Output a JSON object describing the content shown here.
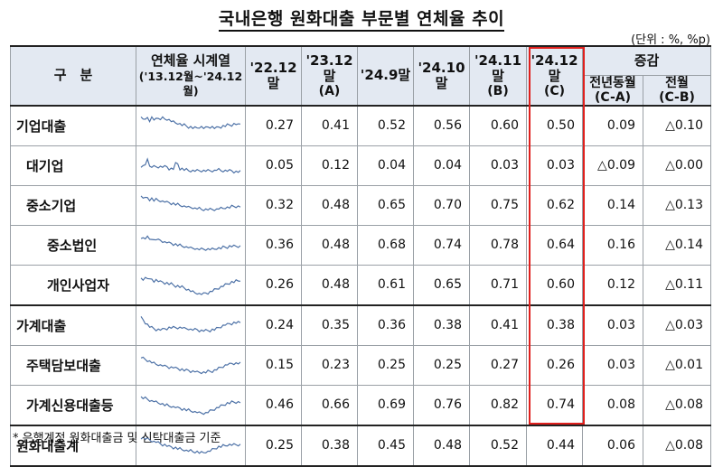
{
  "title": "국내은행 원화대출 부문별 연체율 추이",
  "unit": "(단위 : %, %p)",
  "headers": {
    "category": "구　분",
    "series": "연체율 시계열",
    "series_range": "('13.12월~'24.12월)",
    "c1": "'22.12말",
    "c2": "'23.12말",
    "c2_sub": "(A)",
    "c3": "'24.9말",
    "c4": "'24.10말",
    "c5": "'24.11말",
    "c5_sub": "(B)",
    "c6": "'24.12말",
    "c6_sub": "(C)",
    "change": "증감",
    "yoy": "전년동월",
    "yoy_sub": "(C-A)",
    "mom": "전월",
    "mom_sub": "(C-B)"
  },
  "rows": [
    {
      "label": "기업대출",
      "values": [
        "0.27",
        "0.41",
        "0.52",
        "0.56",
        "0.60",
        "0.50",
        "0.09",
        "△0.10"
      ]
    },
    {
      "label": "대기업",
      "values": [
        "0.05",
        "0.12",
        "0.04",
        "0.04",
        "0.03",
        "0.03",
        "△0.09",
        "△0.00"
      ]
    },
    {
      "label": "중소기업",
      "values": [
        "0.32",
        "0.48",
        "0.65",
        "0.70",
        "0.75",
        "0.62",
        "0.14",
        "△0.13"
      ]
    },
    {
      "label": "중소법인",
      "values": [
        "0.36",
        "0.48",
        "0.68",
        "0.74",
        "0.78",
        "0.64",
        "0.16",
        "△0.14"
      ]
    },
    {
      "label": "개인사업자",
      "values": [
        "0.26",
        "0.48",
        "0.61",
        "0.65",
        "0.71",
        "0.60",
        "0.12",
        "△0.11"
      ]
    },
    {
      "label": "가계대출",
      "values": [
        "0.24",
        "0.35",
        "0.36",
        "0.38",
        "0.41",
        "0.38",
        "0.03",
        "△0.03"
      ]
    },
    {
      "label": "주택담보대출",
      "values": [
        "0.15",
        "0.23",
        "0.25",
        "0.25",
        "0.27",
        "0.26",
        "0.03",
        "△0.01"
      ]
    },
    {
      "label": "가계신용대출등",
      "values": [
        "0.46",
        "0.66",
        "0.69",
        "0.76",
        "0.82",
        "0.74",
        "0.08",
        "△0.08"
      ]
    },
    {
      "label": "원화대출계",
      "values": [
        "0.25",
        "0.38",
        "0.45",
        "0.48",
        "0.52",
        "0.44",
        "0.06",
        "△0.08"
      ]
    }
  ],
  "sparkline_color": "#4a6fa5",
  "highlight_color": "#e0201d",
  "footnote": "* 은행계정 원화대출금 및 신탁대출금 기준"
}
